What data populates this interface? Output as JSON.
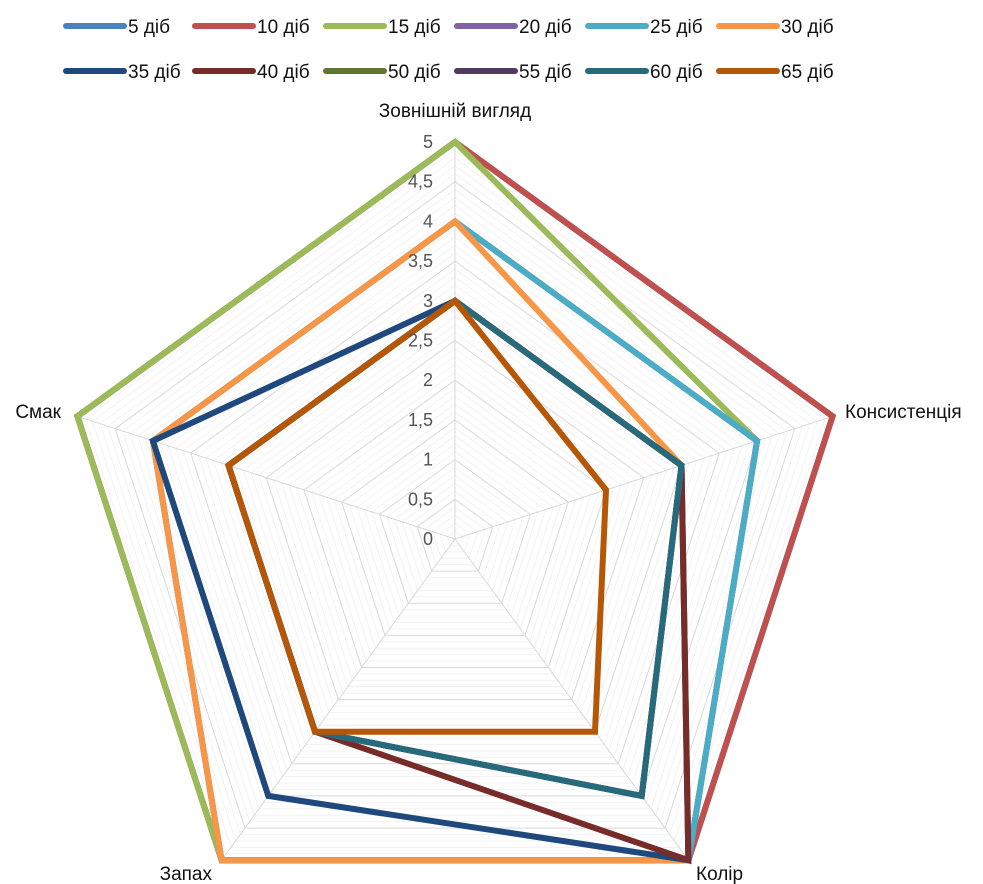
{
  "chart_data": {
    "type": "radar",
    "axes": [
      "Зовнішній вигляд",
      "Консистенція",
      "Колір",
      "Запах",
      "Смак"
    ],
    "rlim": [
      0,
      5
    ],
    "ticks": [
      "0",
      "0,5",
      "1",
      "1,5",
      "2",
      "2,5",
      "3",
      "3,5",
      "4",
      "4,5",
      "5"
    ],
    "minor_grid_step": 0.1,
    "legend_position": "top",
    "series": [
      {
        "name": "5 діб",
        "color": "#4F81BD",
        "values": [
          5,
          5,
          5,
          5,
          5
        ]
      },
      {
        "name": "10 діб",
        "color": "#C0504D",
        "values": [
          5,
          5,
          5,
          5,
          5
        ]
      },
      {
        "name": "15 діб",
        "color": "#9BBB59",
        "values": [
          5,
          4,
          5,
          5,
          5
        ]
      },
      {
        "name": "20 діб",
        "color": "#8064A2",
        "values": [
          4,
          4,
          5,
          5,
          4
        ]
      },
      {
        "name": "25 діб",
        "color": "#4BACC6",
        "values": [
          4,
          4,
          5,
          5,
          4
        ]
      },
      {
        "name": "30 діб",
        "color": "#F79646",
        "values": [
          4,
          3,
          5,
          5,
          4
        ]
      },
      {
        "name": "35 діб",
        "color": "#1F497D",
        "values": [
          3,
          3,
          5,
          4,
          4
        ]
      },
      {
        "name": "40 діб",
        "color": "#772C2A",
        "values": [
          3,
          3,
          5,
          3,
          3
        ]
      },
      {
        "name": "50 діб",
        "color": "#5F7530",
        "values": [
          3,
          3,
          4,
          3,
          3
        ]
      },
      {
        "name": "55 діб",
        "color": "#4D3B62",
        "values": [
          3,
          3,
          4,
          3,
          3
        ]
      },
      {
        "name": "60 діб",
        "color": "#276A7C",
        "values": [
          3,
          3,
          4,
          3,
          3
        ]
      },
      {
        "name": "65 діб",
        "color": "#B65708",
        "values": [
          3,
          2,
          3,
          3,
          3
        ]
      }
    ]
  }
}
